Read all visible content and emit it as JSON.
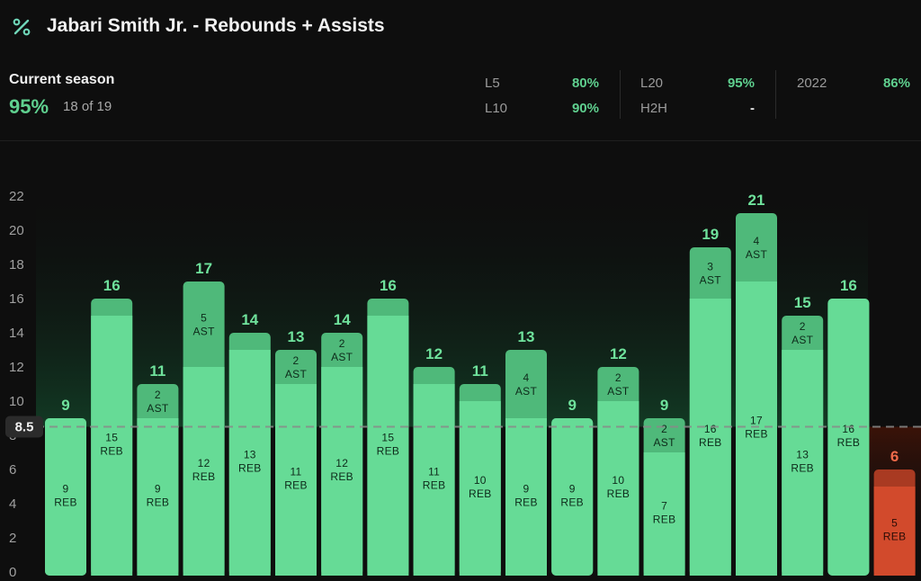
{
  "header": {
    "icon": "percent-icon",
    "title": "Jabari Smith Jr. - Rebounds + Assists"
  },
  "summary": {
    "current_label": "Current season",
    "current_pct": "95%",
    "current_count": "18 of 19",
    "stats": [
      {
        "label": "L5",
        "value": "80%"
      },
      {
        "label": "L10",
        "value": "90%"
      },
      {
        "label": "L20",
        "value": "95%"
      },
      {
        "label": "H2H",
        "value": "-"
      },
      {
        "label": "2022",
        "value": "86%"
      }
    ]
  },
  "colors": {
    "hit_reb": "#66db96",
    "hit_ast": "#4fb97a",
    "miss_reb": "#d24a2c",
    "miss_ast": "#a93a22",
    "hit_text": "#6fe29c",
    "miss_text": "#ef6a4a",
    "background": "#0e0e0e"
  },
  "chart_data": {
    "type": "bar",
    "stacked": true,
    "line": 8.5,
    "line_label": "8.5",
    "ylim": [
      0,
      22
    ],
    "yticks": [
      0,
      2,
      4,
      6,
      8,
      10,
      12,
      14,
      16,
      18,
      20,
      22
    ],
    "grid": false,
    "series": [
      {
        "name": "REB",
        "values": [
          9,
          15,
          9,
          12,
          13,
          11,
          12,
          15,
          11,
          10,
          9,
          9,
          10,
          7,
          16,
          17,
          13,
          16,
          5
        ]
      },
      {
        "name": "AST",
        "values": [
          0,
          1,
          2,
          5,
          1,
          2,
          2,
          1,
          1,
          1,
          4,
          0,
          2,
          2,
          3,
          4,
          2,
          0,
          1
        ]
      }
    ],
    "totals": [
      9,
      16,
      11,
      17,
      14,
      13,
      14,
      16,
      12,
      11,
      13,
      9,
      12,
      9,
      19,
      21,
      15,
      16,
      6
    ],
    "hit": [
      true,
      true,
      true,
      true,
      true,
      true,
      true,
      true,
      true,
      true,
      true,
      true,
      true,
      true,
      true,
      true,
      true,
      true,
      false
    ],
    "reb_unit": "REB",
    "ast_unit": "AST"
  }
}
